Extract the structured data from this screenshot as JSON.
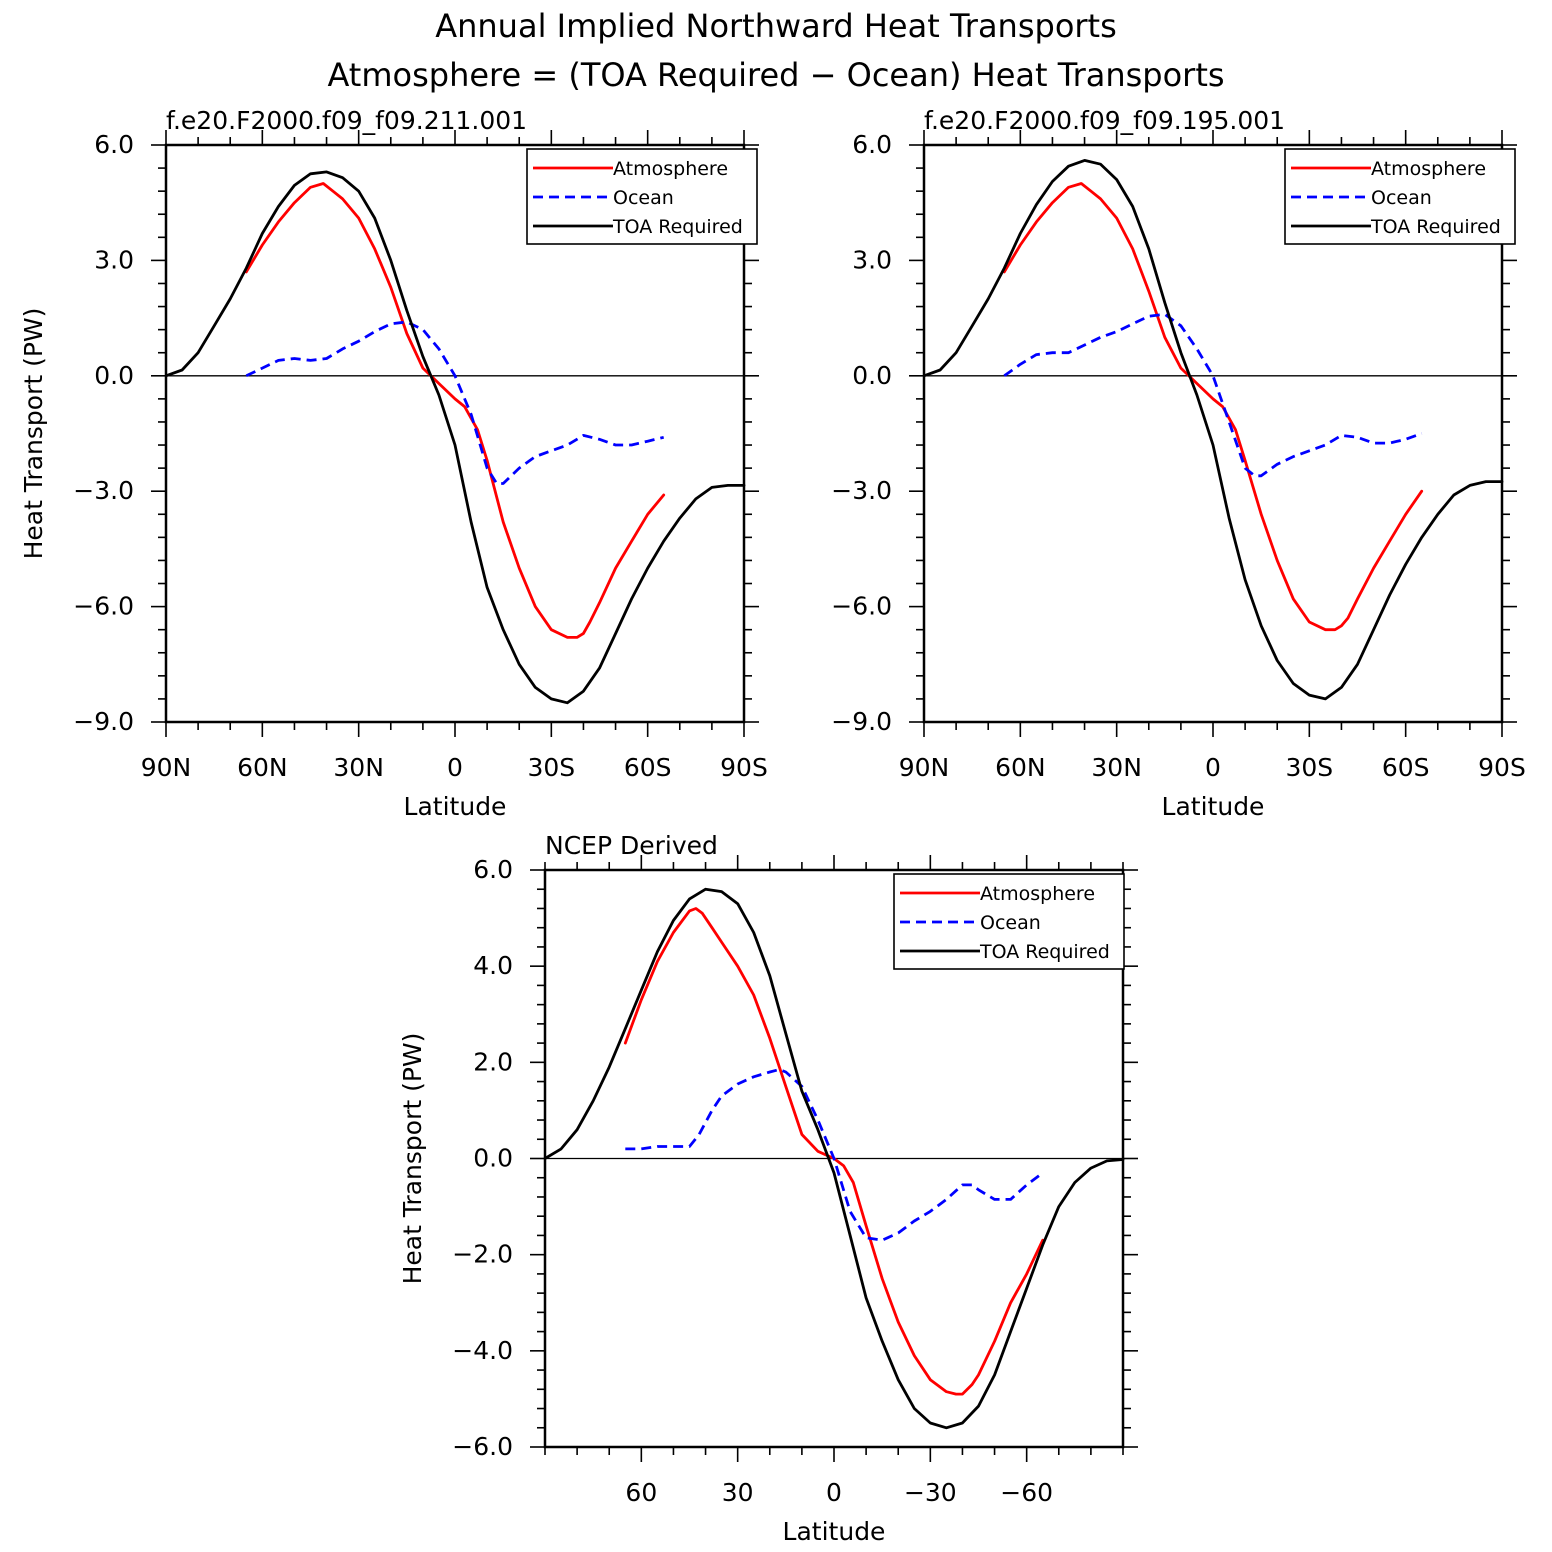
{
  "figure": {
    "title_line1": "Annual Implied Northward Heat Transports",
    "title_line2": "Atmosphere = (TOA Required − Ocean) Heat Transports"
  },
  "legend_labels": [
    "Atmosphere",
    "Ocean",
    "TOA Required"
  ],
  "colors": {
    "atmosphere": "#ff0000",
    "ocean": "#0000ff",
    "toa": "#000000"
  },
  "chart_data": [
    {
      "type": "line",
      "title": "f.e20.F2000.f09_f09.211.001",
      "xlabel": "Latitude",
      "ylabel": "Heat Transport (PW)",
      "xlim": [
        90,
        -90
      ],
      "ylim": [
        -9,
        6
      ],
      "xticks": [
        90,
        60,
        30,
        0,
        -30,
        -60,
        -90
      ],
      "xtick_labels": [
        "90N",
        "60N",
        "30N",
        "0",
        "30S",
        "60S",
        "90S"
      ],
      "yticks": [
        6,
        3,
        0,
        -3,
        -6,
        -9
      ],
      "ytick_labels": [
        "6.0",
        "3.0",
        "0.0",
        "−3.0",
        "−6.0",
        "−9.0"
      ],
      "legend": "top-right",
      "series": [
        {
          "name": "Atmosphere",
          "style": "solid",
          "color": "#ff0000",
          "x": [
            65,
            60,
            55,
            50,
            45,
            41,
            38,
            35,
            30,
            25,
            20,
            15,
            10,
            5,
            0,
            -3,
            -7,
            -10,
            -15,
            -20,
            -25,
            -30,
            -35,
            -38,
            -40,
            -42,
            -45,
            -50,
            -55,
            -60,
            -65
          ],
          "y": [
            2.7,
            3.4,
            4.0,
            4.5,
            4.9,
            5.0,
            4.8,
            4.6,
            4.1,
            3.3,
            2.3,
            1.1,
            0.2,
            -0.2,
            -0.6,
            -0.8,
            -1.4,
            -2.2,
            -3.8,
            -5.0,
            -6.0,
            -6.6,
            -6.8,
            -6.8,
            -6.7,
            -6.4,
            -5.9,
            -5.0,
            -4.3,
            -3.6,
            -3.1
          ]
        },
        {
          "name": "Ocean",
          "style": "dashed",
          "color": "#0000ff",
          "x": [
            65,
            60,
            55,
            50,
            45,
            40,
            35,
            30,
            25,
            20,
            15,
            10,
            5,
            0,
            -5,
            -10,
            -13,
            -15,
            -20,
            -25,
            -30,
            -35,
            -40,
            -45,
            -50,
            -55,
            -60,
            -65
          ],
          "y": [
            0.0,
            0.2,
            0.4,
            0.45,
            0.4,
            0.45,
            0.7,
            0.9,
            1.15,
            1.35,
            1.4,
            1.2,
            0.7,
            0.0,
            -1.0,
            -2.4,
            -2.8,
            -2.8,
            -2.4,
            -2.1,
            -1.95,
            -1.8,
            -1.55,
            -1.65,
            -1.8,
            -1.8,
            -1.7,
            -1.6
          ]
        },
        {
          "name": "TOA Required",
          "style": "solid",
          "color": "#000000",
          "x": [
            90,
            85,
            80,
            75,
            70,
            65,
            60,
            55,
            50,
            45,
            40,
            35,
            30,
            25,
            20,
            15,
            10,
            5,
            0,
            -5,
            -10,
            -15,
            -20,
            -25,
            -30,
            -35,
            -40,
            -45,
            -50,
            -55,
            -60,
            -65,
            -70,
            -75,
            -80,
            -85,
            -90
          ],
          "y": [
            0.0,
            0.15,
            0.6,
            1.3,
            2.0,
            2.8,
            3.7,
            4.4,
            4.95,
            5.25,
            5.3,
            5.15,
            4.8,
            4.1,
            3.0,
            1.7,
            0.5,
            -0.5,
            -1.8,
            -3.8,
            -5.5,
            -6.6,
            -7.5,
            -8.1,
            -8.4,
            -8.5,
            -8.2,
            -7.6,
            -6.7,
            -5.8,
            -5.0,
            -4.3,
            -3.7,
            -3.2,
            -2.9,
            -2.85,
            -2.85
          ]
        }
      ]
    },
    {
      "type": "line",
      "title": "f.e20.F2000.f09_f09.195.001",
      "xlabel": "Latitude",
      "ylabel": "",
      "xlim": [
        90,
        -90
      ],
      "ylim": [
        -9,
        6
      ],
      "xticks": [
        90,
        60,
        30,
        0,
        -30,
        -60,
        -90
      ],
      "xtick_labels": [
        "90N",
        "60N",
        "30N",
        "0",
        "30S",
        "60S",
        "90S"
      ],
      "yticks": [
        6,
        3,
        0,
        -3,
        -6,
        -9
      ],
      "ytick_labels": [
        "6.0",
        "3.0",
        "0.0",
        "−3.0",
        "−6.0",
        "−9.0"
      ],
      "legend": "top-right",
      "series": [
        {
          "name": "Atmosphere",
          "style": "solid",
          "color": "#ff0000",
          "x": [
            65,
            60,
            55,
            50,
            45,
            41,
            38,
            35,
            30,
            25,
            20,
            15,
            10,
            5,
            0,
            -3,
            -7,
            -10,
            -15,
            -20,
            -25,
            -30,
            -35,
            -38,
            -40,
            -42,
            -45,
            -50,
            -55,
            -60,
            -65
          ],
          "y": [
            2.7,
            3.4,
            4.0,
            4.5,
            4.9,
            5.0,
            4.8,
            4.6,
            4.1,
            3.3,
            2.2,
            1.0,
            0.2,
            -0.2,
            -0.6,
            -0.8,
            -1.4,
            -2.2,
            -3.6,
            -4.8,
            -5.8,
            -6.4,
            -6.6,
            -6.6,
            -6.5,
            -6.3,
            -5.8,
            -5.0,
            -4.3,
            -3.6,
            -3.0
          ]
        },
        {
          "name": "Ocean",
          "style": "dashed",
          "color": "#0000ff",
          "x": [
            65,
            60,
            55,
            50,
            45,
            40,
            35,
            30,
            25,
            20,
            15,
            10,
            5,
            0,
            -5,
            -10,
            -13,
            -15,
            -20,
            -25,
            -30,
            -35,
            -40,
            -45,
            -50,
            -55,
            -60,
            -65
          ],
          "y": [
            0.0,
            0.3,
            0.55,
            0.6,
            0.6,
            0.8,
            1.0,
            1.15,
            1.35,
            1.55,
            1.6,
            1.3,
            0.7,
            0.0,
            -1.2,
            -2.4,
            -2.6,
            -2.6,
            -2.3,
            -2.1,
            -1.95,
            -1.8,
            -1.55,
            -1.6,
            -1.75,
            -1.75,
            -1.65,
            -1.5
          ]
        },
        {
          "name": "TOA Required",
          "style": "solid",
          "color": "#000000",
          "x": [
            90,
            85,
            80,
            75,
            70,
            65,
            60,
            55,
            50,
            45,
            40,
            35,
            30,
            25,
            20,
            15,
            10,
            5,
            0,
            -5,
            -10,
            -15,
            -20,
            -25,
            -30,
            -35,
            -40,
            -45,
            -50,
            -55,
            -60,
            -65,
            -70,
            -75,
            -80,
            -85,
            -90
          ],
          "y": [
            0.0,
            0.15,
            0.6,
            1.3,
            2.0,
            2.8,
            3.7,
            4.45,
            5.05,
            5.45,
            5.6,
            5.5,
            5.1,
            4.4,
            3.3,
            1.9,
            0.6,
            -0.5,
            -1.8,
            -3.7,
            -5.3,
            -6.5,
            -7.4,
            -8.0,
            -8.3,
            -8.4,
            -8.1,
            -7.5,
            -6.6,
            -5.7,
            -4.9,
            -4.2,
            -3.6,
            -3.1,
            -2.85,
            -2.75,
            -2.75
          ]
        }
      ]
    },
    {
      "type": "line",
      "title": "NCEP Derived",
      "xlabel": "Latitude",
      "ylabel": "Heat Transport (PW)",
      "xlim": [
        90,
        -90
      ],
      "ylim": [
        -6,
        6
      ],
      "xticks": [
        60,
        30,
        0,
        -30,
        -60
      ],
      "xtick_labels": [
        "60",
        "30",
        "0",
        "−30",
        "−60"
      ],
      "yticks": [
        6,
        4,
        2,
        0,
        -2,
        -4,
        -6
      ],
      "ytick_labels": [
        "6.0",
        "4.0",
        "2.0",
        "0.0",
        "−2.0",
        "−4.0",
        "−6.0"
      ],
      "legend": "top-right",
      "series": [
        {
          "name": "Atmosphere",
          "style": "solid",
          "color": "#ff0000",
          "x": [
            65,
            60,
            55,
            50,
            45,
            43,
            41,
            38,
            35,
            30,
            25,
            20,
            15,
            10,
            5,
            0,
            -3,
            -6,
            -10,
            -15,
            -20,
            -25,
            -30,
            -35,
            -38,
            -40,
            -43,
            -45,
            -50,
            -55,
            -60,
            -65
          ],
          "y": [
            2.4,
            3.3,
            4.1,
            4.7,
            5.15,
            5.2,
            5.1,
            4.8,
            4.5,
            4.0,
            3.4,
            2.5,
            1.5,
            0.5,
            0.15,
            0.0,
            -0.15,
            -0.5,
            -1.4,
            -2.5,
            -3.4,
            -4.1,
            -4.6,
            -4.85,
            -4.9,
            -4.9,
            -4.7,
            -4.5,
            -3.8,
            -3.0,
            -2.4,
            -1.7
          ]
        },
        {
          "name": "Ocean",
          "style": "dashed",
          "color": "#0000ff",
          "x": [
            65,
            60,
            55,
            50,
            45,
            42,
            38,
            35,
            30,
            25,
            20,
            17,
            15,
            10,
            5,
            0,
            -5,
            -10,
            -15,
            -20,
            -25,
            -30,
            -35,
            -40,
            -43,
            -45,
            -50,
            -55,
            -60,
            -65
          ],
          "y": [
            0.2,
            0.2,
            0.25,
            0.25,
            0.25,
            0.5,
            1.0,
            1.3,
            1.55,
            1.7,
            1.8,
            1.85,
            1.8,
            1.5,
            0.8,
            0.0,
            -1.1,
            -1.65,
            -1.7,
            -1.55,
            -1.3,
            -1.1,
            -0.85,
            -0.55,
            -0.55,
            -0.65,
            -0.85,
            -0.85,
            -0.55,
            -0.3
          ]
        },
        {
          "name": "TOA Required",
          "style": "solid",
          "color": "#000000",
          "x": [
            90,
            85,
            80,
            75,
            70,
            65,
            60,
            55,
            50,
            45,
            40,
            35,
            30,
            25,
            20,
            15,
            10,
            5,
            0,
            -5,
            -10,
            -15,
            -20,
            -25,
            -30,
            -35,
            -40,
            -45,
            -50,
            -55,
            -60,
            -65,
            -70,
            -75,
            -80,
            -85,
            -90
          ],
          "y": [
            0.0,
            0.2,
            0.6,
            1.2,
            1.9,
            2.7,
            3.5,
            4.3,
            4.95,
            5.4,
            5.6,
            5.55,
            5.3,
            4.7,
            3.8,
            2.6,
            1.4,
            0.6,
            -0.3,
            -1.6,
            -2.9,
            -3.8,
            -4.6,
            -5.2,
            -5.5,
            -5.6,
            -5.5,
            -5.15,
            -4.5,
            -3.6,
            -2.7,
            -1.8,
            -1.0,
            -0.5,
            -0.2,
            -0.05,
            -0.02
          ]
        }
      ]
    }
  ]
}
